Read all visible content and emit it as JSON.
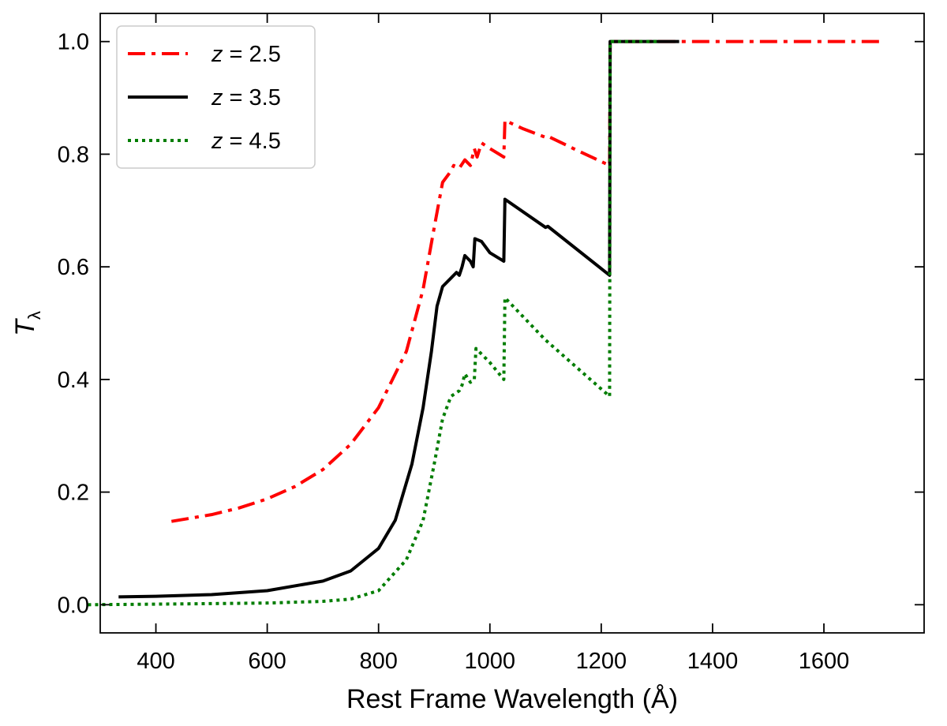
{
  "chart_data": {
    "type": "line",
    "xlabel": "Rest Frame Wavelength (Å)",
    "ylabel": "T",
    "ylabel_subscript": "λ",
    "xlim": [
      300,
      1780
    ],
    "ylim": [
      -0.05,
      1.05
    ],
    "x_ticks": [
      400,
      600,
      800,
      1000,
      1200,
      1400,
      1600
    ],
    "y_ticks": [
      0.0,
      0.2,
      0.4,
      0.6,
      0.8,
      1.0
    ],
    "x_tick_labels": [
      "400",
      "600",
      "800",
      "1000",
      "1200",
      "1400",
      "1600"
    ],
    "y_tick_labels": [
      "0.0",
      "0.2",
      "0.4",
      "0.6",
      "0.8",
      "1.0"
    ],
    "grid": false,
    "legend_position": "top-left",
    "series": [
      {
        "name": "z = 2.5",
        "legend_var": "z",
        "legend_value": "= 2.5",
        "color": "#ff0000",
        "linestyle": "dashdot",
        "points": [
          [
            428,
            0.148
          ],
          [
            500,
            0.16
          ],
          [
            550,
            0.172
          ],
          [
            600,
            0.188
          ],
          [
            650,
            0.21
          ],
          [
            700,
            0.24
          ],
          [
            750,
            0.285
          ],
          [
            800,
            0.35
          ],
          [
            850,
            0.45
          ],
          [
            880,
            0.56
          ],
          [
            900,
            0.67
          ],
          [
            915,
            0.75
          ],
          [
            930,
            0.77
          ],
          [
            935,
            0.78
          ],
          [
            945,
            0.775
          ],
          [
            955,
            0.79
          ],
          [
            965,
            0.78
          ],
          [
            972,
            0.81
          ],
          [
            977,
            0.795
          ],
          [
            985,
            0.82
          ],
          [
            1000,
            0.81
          ],
          [
            1025,
            0.795
          ],
          [
            1027,
            0.86
          ],
          [
            1060,
            0.845
          ],
          [
            1100,
            0.83
          ],
          [
            1104,
            0.832
          ],
          [
            1150,
            0.81
          ],
          [
            1215,
            0.78
          ],
          [
            1216,
            1.0
          ],
          [
            1700,
            1.0
          ]
        ]
      },
      {
        "name": "z = 3.5",
        "legend_var": "z",
        "legend_value": "= 3.5",
        "color": "#000000",
        "linestyle": "solid",
        "points": [
          [
            333,
            0.014
          ],
          [
            400,
            0.015
          ],
          [
            500,
            0.018
          ],
          [
            600,
            0.025
          ],
          [
            700,
            0.042
          ],
          [
            750,
            0.06
          ],
          [
            800,
            0.1
          ],
          [
            830,
            0.15
          ],
          [
            860,
            0.25
          ],
          [
            880,
            0.35
          ],
          [
            895,
            0.45
          ],
          [
            905,
            0.53
          ],
          [
            915,
            0.565
          ],
          [
            930,
            0.58
          ],
          [
            940,
            0.59
          ],
          [
            945,
            0.585
          ],
          [
            950,
            0.6
          ],
          [
            955,
            0.62
          ],
          [
            965,
            0.61
          ],
          [
            970,
            0.6
          ],
          [
            973,
            0.65
          ],
          [
            985,
            0.645
          ],
          [
            1000,
            0.625
          ],
          [
            1025,
            0.61
          ],
          [
            1027,
            0.72
          ],
          [
            1100,
            0.67
          ],
          [
            1104,
            0.672
          ],
          [
            1215,
            0.585
          ],
          [
            1216,
            1.0
          ],
          [
            1340,
            1.0
          ]
        ]
      },
      {
        "name": "z = 4.5",
        "legend_var": "z",
        "legend_value": "= 4.5",
        "color": "#007d00",
        "linestyle": "dotted",
        "points": [
          [
            278,
            0.0
          ],
          [
            400,
            0.001
          ],
          [
            500,
            0.002
          ],
          [
            600,
            0.003
          ],
          [
            700,
            0.006
          ],
          [
            750,
            0.01
          ],
          [
            800,
            0.025
          ],
          [
            850,
            0.08
          ],
          [
            880,
            0.15
          ],
          [
            900,
            0.25
          ],
          [
            915,
            0.33
          ],
          [
            930,
            0.37
          ],
          [
            945,
            0.38
          ],
          [
            950,
            0.39
          ],
          [
            955,
            0.41
          ],
          [
            965,
            0.395
          ],
          [
            972,
            0.4
          ],
          [
            975,
            0.455
          ],
          [
            985,
            0.445
          ],
          [
            1000,
            0.43
          ],
          [
            1025,
            0.4
          ],
          [
            1027,
            0.545
          ],
          [
            1100,
            0.47
          ],
          [
            1215,
            0.37
          ],
          [
            1216,
            1.0
          ],
          [
            1300,
            1.0
          ]
        ]
      }
    ]
  }
}
